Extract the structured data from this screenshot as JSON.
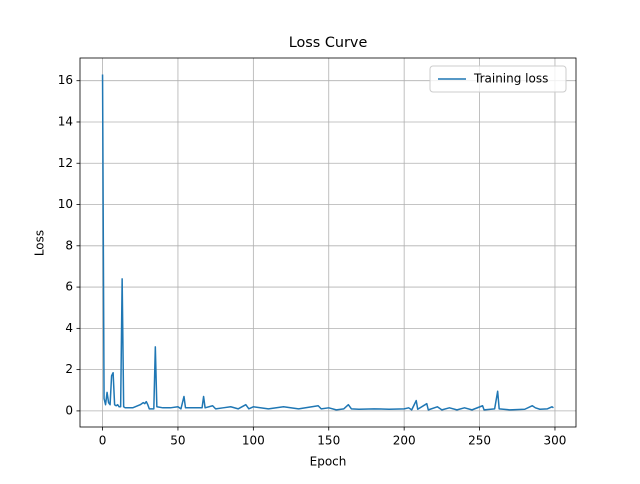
{
  "chart_data": {
    "type": "line",
    "title": "Loss Curve",
    "x_label": "Epoch",
    "y_label": "Loss",
    "x": [
      0,
      1,
      2,
      3,
      4,
      5,
      6,
      7,
      8,
      9,
      10,
      11,
      12,
      13,
      14,
      15,
      20,
      25,
      27,
      28,
      29,
      30,
      31,
      34,
      35,
      36,
      40,
      45,
      50,
      52,
      54,
      55,
      60,
      66,
      67,
      68,
      73,
      75,
      80,
      85,
      90,
      95,
      97,
      100,
      110,
      120,
      130,
      143,
      145,
      150,
      155,
      160,
      163,
      165,
      170,
      180,
      190,
      200,
      203,
      205,
      208,
      209,
      215,
      216,
      222,
      225,
      230,
      235,
      240,
      245,
      252,
      253,
      260,
      262,
      263,
      270,
      280,
      285,
      287,
      290,
      295,
      298,
      299
    ],
    "series": [
      {
        "name": "Training loss",
        "color": "#1f77b4",
        "values": [
          16.3,
          0.6,
          0.3,
          0.9,
          0.4,
          0.3,
          1.7,
          1.85,
          0.3,
          0.25,
          0.3,
          0.2,
          0.2,
          6.4,
          0.2,
          0.15,
          0.15,
          0.3,
          0.4,
          0.35,
          0.45,
          0.3,
          0.1,
          0.1,
          3.1,
          0.2,
          0.15,
          0.15,
          0.2,
          0.1,
          0.7,
          0.15,
          0.15,
          0.15,
          0.7,
          0.15,
          0.25,
          0.1,
          0.15,
          0.2,
          0.1,
          0.3,
          0.1,
          0.2,
          0.1,
          0.2,
          0.1,
          0.25,
          0.1,
          0.15,
          0.05,
          0.1,
          0.3,
          0.1,
          0.08,
          0.1,
          0.08,
          0.1,
          0.15,
          0.05,
          0.5,
          0.08,
          0.35,
          0.05,
          0.2,
          0.05,
          0.15,
          0.05,
          0.15,
          0.05,
          0.25,
          0.05,
          0.1,
          0.95,
          0.1,
          0.05,
          0.08,
          0.25,
          0.15,
          0.08,
          0.1,
          0.2,
          0.15
        ]
      }
    ],
    "xlim": [
      -14.95,
      313.95
    ],
    "ylim": [
      -0.78,
      17.1
    ],
    "xticks": [
      0,
      50,
      100,
      150,
      200,
      250,
      300
    ],
    "yticks": [
      0,
      2,
      4,
      6,
      8,
      10,
      12,
      14,
      16
    ],
    "grid": true,
    "legend": "upper right"
  }
}
